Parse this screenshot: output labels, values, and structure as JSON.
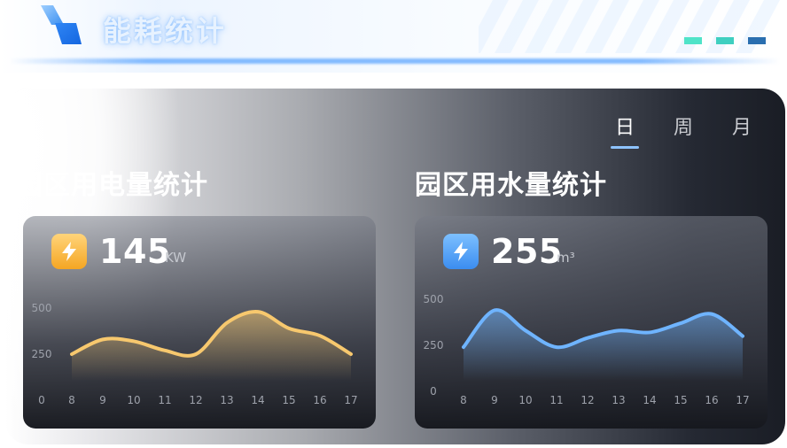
{
  "header": {
    "title": "能耗统计",
    "dash_colors": [
      "#4fe3c8",
      "#3fcfc0",
      "#2a6fb0"
    ]
  },
  "tabs": [
    {
      "label": "日",
      "active": true
    },
    {
      "label": "周",
      "active": false
    },
    {
      "label": "月",
      "active": false
    }
  ],
  "electric": {
    "section_title": "园区用电量统计",
    "value": "145",
    "unit": "KW",
    "icon": "lightning-icon",
    "icon_color_top": "#ffd47a",
    "icon_color_bottom": "#f5a623",
    "line_color": "#f7c86e",
    "chart_data": {
      "type": "area",
      "x": [
        8,
        9,
        10,
        11,
        12,
        13,
        14,
        15,
        16,
        17
      ],
      "categories": [
        "8",
        "9",
        "10",
        "11",
        "12",
        "13",
        "14",
        "15",
        "16",
        "17"
      ],
      "values": [
        250,
        330,
        320,
        270,
        250,
        420,
        480,
        390,
        350,
        250
      ],
      "yticks": [
        "0",
        "250",
        "500"
      ],
      "ylim": [
        0,
        500
      ],
      "title": "",
      "xlabel": "",
      "ylabel": ""
    }
  },
  "water": {
    "section_title": "园区用水量统计",
    "value": "255",
    "unit": "m³",
    "icon": "lightning-icon",
    "icon_color_top": "#7dc0ff",
    "icon_color_bottom": "#3b8df0",
    "line_color": "#6fb4ff",
    "chart_data": {
      "type": "area",
      "x": [
        8,
        9,
        10,
        11,
        12,
        13,
        14,
        15,
        16,
        17
      ],
      "categories": [
        "8",
        "9",
        "10",
        "11",
        "12",
        "13",
        "14",
        "15",
        "16",
        "17"
      ],
      "values": [
        240,
        440,
        330,
        240,
        290,
        330,
        320,
        370,
        420,
        300
      ],
      "yticks": [
        "0",
        "250",
        "500"
      ],
      "ylim": [
        0,
        500
      ],
      "title": "",
      "xlabel": "",
      "ylabel": ""
    }
  }
}
